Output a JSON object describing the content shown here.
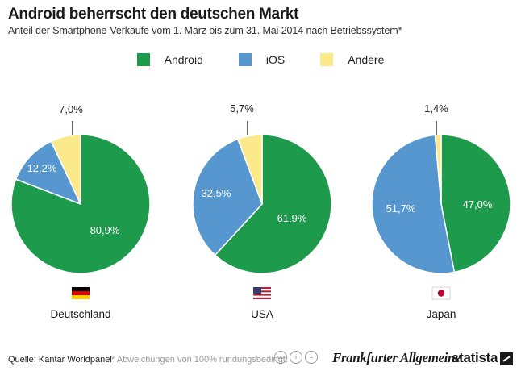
{
  "title": "Android beherrscht den deutschen Markt",
  "subtitle": "Anteil der Smartphone-Verkäufe vom 1. März bis zum 31. Mai 2014 nach Betriebssystem*",
  "legend": [
    {
      "label": "Android",
      "color": "#1e9a4d"
    },
    {
      "label": "iOS",
      "color": "#5697cf"
    },
    {
      "label": "Andere",
      "color": "#fbe98c"
    }
  ],
  "chart_data": [
    {
      "type": "pie",
      "title": "Deutschland",
      "flag": "de-flag",
      "categories": [
        "Android",
        "iOS",
        "Andere"
      ],
      "values": [
        80.9,
        12.2,
        7.0
      ],
      "labels": [
        "80,9%",
        "12,2%",
        "7,0%"
      ],
      "colors": [
        "#1e9a4d",
        "#5697cf",
        "#fbe98c"
      ]
    },
    {
      "type": "pie",
      "title": "USA",
      "flag": "us-flag",
      "categories": [
        "Android",
        "iOS",
        "Andere"
      ],
      "values": [
        61.9,
        32.5,
        5.7
      ],
      "labels": [
        "61,9%",
        "32,5%",
        "5,7%"
      ],
      "colors": [
        "#1e9a4d",
        "#5697cf",
        "#fbe98c"
      ]
    },
    {
      "type": "pie",
      "title": "Japan",
      "flag": "jp-flag",
      "categories": [
        "Android",
        "iOS",
        "Andere"
      ],
      "values": [
        47.0,
        51.7,
        1.4
      ],
      "labels": [
        "47,0%",
        "51,7%",
        "1,4%"
      ],
      "colors": [
        "#1e9a4d",
        "#5697cf",
        "#fbe98c"
      ]
    }
  ],
  "footer": {
    "source": "Quelle: Kantar Worldpanel",
    "note": "* Abweichungen von 100% rundungsbedingt.",
    "cc_icons": [
      "cc-icon",
      "by-icon",
      "nd-icon"
    ],
    "publisher_logo": "Frankfurter Allgemeine",
    "brand": "statista"
  }
}
